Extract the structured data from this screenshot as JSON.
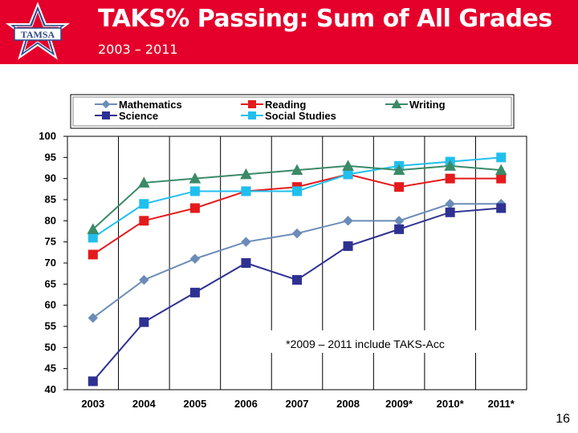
{
  "header": {
    "title": "TAKS% Passing: Sum of All Grades",
    "subtitle": "2003 – 2011",
    "logo_text": "TAMSA",
    "colors": {
      "banner": "#e4002b",
      "text": "#ffffff"
    }
  },
  "chart_data": {
    "type": "line",
    "title": "",
    "xlabel": "",
    "ylabel": "",
    "categories": [
      "2003",
      "2004",
      "2005",
      "2006",
      "2007",
      "2008",
      "2009*",
      "2010*",
      "2011*"
    ],
    "ylim": [
      40,
      100
    ],
    "yticks": [
      100,
      95,
      90,
      85,
      80,
      75,
      70,
      65,
      60,
      55,
      50,
      45,
      40
    ],
    "grid": "vertical",
    "legend_position": "top",
    "series": [
      {
        "name": "Mathematics",
        "marker": "diamond",
        "color": "#6b8cb8",
        "values": [
          57,
          66,
          71,
          75,
          77,
          80,
          80,
          84,
          84
        ]
      },
      {
        "name": "Science",
        "marker": "square",
        "color": "#2e3192",
        "values": [
          42,
          56,
          63,
          70,
          66,
          74,
          78,
          82,
          83
        ]
      },
      {
        "name": "Reading",
        "marker": "square",
        "color": "#e41a1c",
        "values": [
          72,
          80,
          83,
          87,
          88,
          91,
          88,
          90,
          90
        ]
      },
      {
        "name": "Social Studies",
        "marker": "square",
        "color": "#20bfee",
        "values": [
          76,
          84,
          87,
          87,
          87,
          91,
          93,
          94,
          95
        ]
      },
      {
        "name": "Writing",
        "marker": "triangle",
        "color": "#3a8a68",
        "values": [
          78,
          89,
          90,
          91,
          92,
          93,
          92,
          93,
          92
        ]
      }
    ],
    "annotation": "*2009 – 2011 include TAKS-Acc"
  },
  "footer": {
    "page_number": "16"
  }
}
